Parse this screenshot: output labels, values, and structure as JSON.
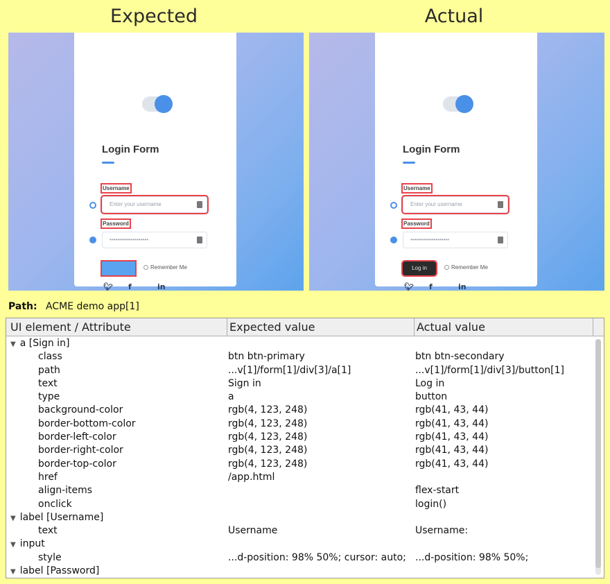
{
  "titles": {
    "expected": "Expected",
    "actual": "Actual"
  },
  "login_form": {
    "title": "Login Form",
    "username_label": "Username",
    "username_placeholder": "Enter your username",
    "password_label": "Password",
    "password_value": "••••••••••••••••••••",
    "remember_label": "Remember Me",
    "expected_button": "Sign in",
    "actual_button": "Log in",
    "social": [
      "twitter-icon",
      "facebook-icon",
      "linkedin-icon"
    ],
    "accent_color": "#4a90e8"
  },
  "path": {
    "label": "Path:",
    "value": "ACME demo app[1]"
  },
  "table": {
    "headers": [
      "UI element / Attribute",
      "Expected value",
      "Actual value"
    ],
    "rows": [
      {
        "kind": "group",
        "name": "a [Sign in]",
        "expected": "",
        "actual": ""
      },
      {
        "kind": "attr",
        "name": "class",
        "expected": "btn btn-primary",
        "actual": "btn btn-secondary"
      },
      {
        "kind": "attr",
        "name": "path",
        "expected": "...v[1]/form[1]/div[3]/a[1]",
        "actual": "...v[1]/form[1]/div[3]/button[1]"
      },
      {
        "kind": "attr",
        "name": "text",
        "expected": "Sign in",
        "actual": "Log in"
      },
      {
        "kind": "attr",
        "name": "type",
        "expected": "a",
        "actual": "button"
      },
      {
        "kind": "attr",
        "name": "background-color",
        "expected": "rgb(4, 123, 248)",
        "actual": "rgb(41, 43, 44)"
      },
      {
        "kind": "attr",
        "name": "border-bottom-color",
        "expected": "rgb(4, 123, 248)",
        "actual": "rgb(41, 43, 44)"
      },
      {
        "kind": "attr",
        "name": "border-left-color",
        "expected": "rgb(4, 123, 248)",
        "actual": "rgb(41, 43, 44)"
      },
      {
        "kind": "attr",
        "name": "border-right-color",
        "expected": "rgb(4, 123, 248)",
        "actual": "rgb(41, 43, 44)"
      },
      {
        "kind": "attr",
        "name": "border-top-color",
        "expected": "rgb(4, 123, 248)",
        "actual": "rgb(41, 43, 44)"
      },
      {
        "kind": "attr",
        "name": "href",
        "expected": "/app.html",
        "actual": ""
      },
      {
        "kind": "attr",
        "name": "align-items",
        "expected": "",
        "actual": "flex-start"
      },
      {
        "kind": "attr",
        "name": "onclick",
        "expected": "",
        "actual": "login()"
      },
      {
        "kind": "group",
        "name": "label [Username]",
        "expected": "",
        "actual": ""
      },
      {
        "kind": "attr",
        "name": "text",
        "expected": "Username",
        "actual": "Username:"
      },
      {
        "kind": "group",
        "name": "input",
        "expected": "",
        "actual": ""
      },
      {
        "kind": "attr",
        "name": "style",
        "expected": "...d-position: 98% 50%; cursor: auto;",
        "actual": "...d-position: 98% 50%;"
      },
      {
        "kind": "group",
        "name": "label [Password]",
        "expected": "",
        "actual": ""
      }
    ]
  }
}
